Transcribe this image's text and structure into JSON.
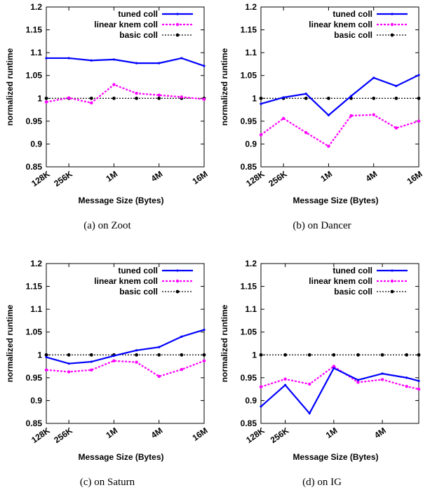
{
  "colors": {
    "tuned": "#0000ff",
    "linear": "#ff00ff",
    "basic": "#000000",
    "axis": "#000000"
  },
  "chart_data": [
    {
      "type": "line",
      "caption": "(a) on Zoot",
      "xlabel": "Message Size (Bytes)",
      "ylabel": "normalized runtime",
      "ylim": [
        0.85,
        1.2
      ],
      "yticks": [
        "0.85",
        "0.9",
        "0.95",
        "1",
        "1.05",
        "1.1",
        "1.15",
        "1.2"
      ],
      "xticks": [
        {
          "label": "128K",
          "x": 0
        },
        {
          "label": "256K",
          "x": 1
        },
        {
          "label": "1M",
          "x": 3
        },
        {
          "label": "4M",
          "x": 5
        },
        {
          "label": "16M",
          "x": 7
        }
      ],
      "xlim": [
        0,
        7
      ],
      "legend_position": "top-right",
      "series": [
        {
          "name": "tuned coll",
          "key": "tuned",
          "x": [
            0,
            1,
            2,
            3,
            4,
            5,
            6,
            7
          ],
          "values": [
            1.088,
            1.088,
            1.083,
            1.085,
            1.077,
            1.077,
            1.088,
            1.071
          ]
        },
        {
          "name": "linear knem coll",
          "key": "linear",
          "x": [
            0,
            1,
            2,
            3,
            4,
            5,
            6,
            7
          ],
          "values": [
            0.992,
            1.001,
            0.99,
            1.03,
            1.011,
            1.007,
            1.003,
            0.998
          ]
        },
        {
          "name": "basic coll",
          "key": "basic",
          "x": [
            0,
            1,
            2,
            3,
            4,
            5,
            6,
            7
          ],
          "values": [
            1,
            1,
            1,
            1,
            1,
            1,
            1,
            1
          ]
        }
      ]
    },
    {
      "type": "line",
      "caption": "(b) on Dancer",
      "xlabel": "Message Size (Bytes)",
      "ylabel": "normalized runtime",
      "ylim": [
        0.85,
        1.2
      ],
      "yticks": [
        "0.85",
        "0.9",
        "0.95",
        "1",
        "1.05",
        "1.1",
        "1.15",
        "1.2"
      ],
      "xticks": [
        {
          "label": "128K",
          "x": 0
        },
        {
          "label": "256K",
          "x": 1
        },
        {
          "label": "1M",
          "x": 3
        },
        {
          "label": "4M",
          "x": 5
        },
        {
          "label": "16M",
          "x": 7
        }
      ],
      "xlim": [
        0,
        7
      ],
      "legend_position": "top-right",
      "series": [
        {
          "name": "tuned coll",
          "key": "tuned",
          "x": [
            0,
            1,
            2,
            3,
            4,
            5,
            6,
            7
          ],
          "values": [
            0.988,
            1.002,
            1.01,
            0.963,
            1.005,
            1.045,
            1.027,
            1.051
          ]
        },
        {
          "name": "linear knem coll",
          "key": "linear",
          "x": [
            0,
            1,
            2,
            3,
            4,
            5,
            6,
            7
          ],
          "values": [
            0.92,
            0.956,
            0.925,
            0.895,
            0.962,
            0.964,
            0.935,
            0.95
          ]
        },
        {
          "name": "basic coll",
          "key": "basic",
          "x": [
            0,
            1,
            2,
            3,
            4,
            5,
            6,
            7
          ],
          "values": [
            1,
            1,
            1,
            1,
            1,
            1,
            1,
            1
          ]
        }
      ]
    },
    {
      "type": "line",
      "caption": "(c) on Saturn",
      "xlabel": "Message Size (Bytes)",
      "ylabel": "normalized runtime",
      "ylim": [
        0.85,
        1.2
      ],
      "yticks": [
        "0.85",
        "0.9",
        "0.95",
        "1",
        "1.05",
        "1.1",
        "1.15",
        "1.2"
      ],
      "xticks": [
        {
          "label": "128K",
          "x": 0
        },
        {
          "label": "256K",
          "x": 1
        },
        {
          "label": "1M",
          "x": 3
        },
        {
          "label": "4M",
          "x": 5
        },
        {
          "label": "16M",
          "x": 7
        }
      ],
      "xlim": [
        0,
        7
      ],
      "legend_position": "top-right",
      "series": [
        {
          "name": "tuned coll",
          "key": "tuned",
          "x": [
            0,
            1,
            2,
            3,
            4,
            5,
            6,
            7
          ],
          "values": [
            0.995,
            0.981,
            0.985,
            0.998,
            1.01,
            1.017,
            1.04,
            1.055
          ]
        },
        {
          "name": "linear knem coll",
          "key": "linear",
          "x": [
            0,
            1,
            2,
            3,
            4,
            5,
            6,
            7
          ],
          "values": [
            0.967,
            0.963,
            0.967,
            0.987,
            0.984,
            0.953,
            0.968,
            0.987
          ]
        },
        {
          "name": "basic coll",
          "key": "basic",
          "x": [
            0,
            1,
            2,
            3,
            4,
            5,
            6,
            7
          ],
          "values": [
            1,
            1,
            1,
            1,
            1,
            1,
            1,
            1
          ]
        }
      ]
    },
    {
      "type": "line",
      "caption": "(d) on IG",
      "xlabel": "Message Size (Bytes)",
      "ylabel": "normalized runtime",
      "ylim": [
        0.85,
        1.2
      ],
      "yticks": [
        "0.85",
        "0.9",
        "0.95",
        "1",
        "1.05",
        "1.1",
        "1.15",
        "1.2"
      ],
      "xticks": [
        {
          "label": "128K",
          "x": 0
        },
        {
          "label": "256K",
          "x": 1
        },
        {
          "label": "1M",
          "x": 3
        },
        {
          "label": "4M",
          "x": 5
        }
      ],
      "xlim": [
        0,
        6.5
      ],
      "legend_position": "top-right",
      "series": [
        {
          "name": "tuned coll",
          "key": "tuned",
          "x": [
            0,
            1,
            2,
            3,
            4,
            5,
            6,
            6.5
          ],
          "values": [
            0.887,
            0.934,
            0.872,
            0.971,
            0.945,
            0.959,
            0.95,
            0.943
          ]
        },
        {
          "name": "linear knem coll",
          "key": "linear",
          "x": [
            0,
            1,
            2,
            3,
            4,
            5,
            6,
            6.5
          ],
          "values": [
            0.93,
            0.947,
            0.936,
            0.975,
            0.94,
            0.946,
            0.931,
            0.925
          ]
        },
        {
          "name": "basic coll",
          "key": "basic",
          "x": [
            0,
            1,
            2,
            3,
            4,
            5,
            6,
            6.5
          ],
          "values": [
            1,
            1,
            1,
            1,
            1,
            1,
            1,
            1
          ]
        }
      ]
    }
  ]
}
